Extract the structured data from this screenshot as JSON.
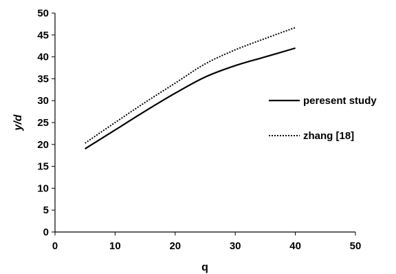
{
  "chart_data": {
    "type": "line",
    "title": "",
    "xlabel": "q",
    "ylabel": "y/d",
    "xlim": [
      0,
      50
    ],
    "ylim": [
      0,
      50
    ],
    "xticks": [
      0,
      10,
      20,
      30,
      40,
      50
    ],
    "yticks": [
      0,
      5,
      10,
      15,
      20,
      25,
      30,
      35,
      40,
      45,
      50
    ],
    "grid": false,
    "legend_position": "right",
    "series": [
      {
        "name": "peresent study",
        "style": "solid",
        "color": "#000000",
        "x": [
          5,
          10,
          15,
          20,
          25,
          30,
          35,
          40
        ],
        "y": [
          19.0,
          23.3,
          27.6,
          31.7,
          35.4,
          38.0,
          40.0,
          42.0
        ]
      },
      {
        "name": "zhang [18]",
        "style": "dotted",
        "color": "#000000",
        "x": [
          5,
          10,
          15,
          20,
          25,
          30,
          35,
          40
        ],
        "y": [
          20.3,
          25.0,
          29.6,
          34.0,
          38.4,
          41.6,
          44.2,
          46.7
        ]
      }
    ]
  }
}
